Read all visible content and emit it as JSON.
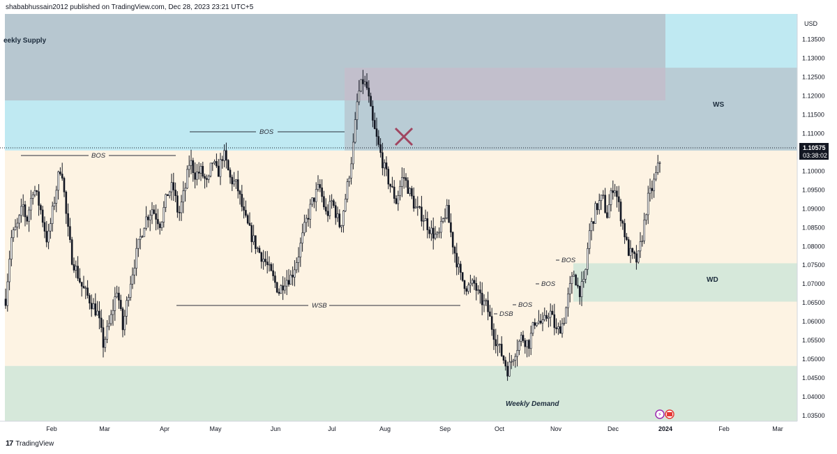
{
  "header": {
    "publisher_line": "shababhussain2012 published on TradingView.com, Dec 28, 2023 23:21 UTC+5"
  },
  "footer": {
    "brand": "TradingView"
  },
  "colors": {
    "supply_zone": "#bfe9f2",
    "supply_overlay": "#b7c7d0",
    "premium_box": "#c2bfcc",
    "demand_zone": "#d6e8da",
    "range_fill": "#fdf3e3",
    "candle": "#131722",
    "cross": "#a04560",
    "price_tag": "#131722"
  },
  "chart_data": {
    "type": "candlestick",
    "currency": "USD",
    "ylim": [
      1.0335,
      1.1418
    ],
    "y_ticks": [
      "1.13500",
      "1.13000",
      "1.12500",
      "1.12000",
      "1.11500",
      "1.11000",
      "1.10500",
      "1.10000",
      "1.09500",
      "1.09000",
      "1.08500",
      "1.08000",
      "1.07500",
      "1.07000",
      "1.06500",
      "1.06000",
      "1.05500",
      "1.05000",
      "1.04500",
      "1.04000",
      "1.03500"
    ],
    "x_ticks": [
      "Feb",
      "Mar",
      "Apr",
      "May",
      "Jun",
      "Jul",
      "Aug",
      "Sep",
      "Oct",
      "Nov",
      "Dec",
      "2024",
      "Feb",
      "Mar"
    ],
    "last_price": "1.10575",
    "countdown": "03:38:02",
    "zones": [
      {
        "label": "eekly Supply",
        "top": 1.1418,
        "bottom": 1.1055
      },
      {
        "label": "WS",
        "top": 1.1275,
        "bottom": 1.1055
      },
      {
        "label": "WD",
        "top": 1.0755,
        "bottom": 1.0653
      },
      {
        "label": "Weekly Demand",
        "top": 1.0482,
        "bottom": 1.0335
      }
    ],
    "annotations": [
      {
        "text": "BOS",
        "price": 1.1035
      },
      {
        "text": "BOS",
        "price": 1.109
      },
      {
        "text": "WSB",
        "price": 1.0637
      },
      {
        "text": "DSB",
        "price": 1.0585
      },
      {
        "text": "BOS",
        "price": 1.0637
      },
      {
        "text": "BOS",
        "price": 1.07
      },
      {
        "text": "BOS",
        "price": 1.075
      }
    ],
    "anchor_closes": [
      [
        0,
        1.066
      ],
      [
        8,
        1.082
      ],
      [
        18,
        1.086
      ],
      [
        25,
        1.091
      ],
      [
        30,
        1.0865
      ],
      [
        40,
        1.096
      ],
      [
        50,
        1.09
      ],
      [
        60,
        1.081
      ],
      [
        75,
        1.098
      ],
      [
        80,
        1.102
      ],
      [
        88,
        1.086
      ],
      [
        95,
        1.077
      ],
      [
        110,
        1.069
      ],
      [
        120,
        1.066
      ],
      [
        132,
        1.062
      ],
      [
        140,
        1.054
      ],
      [
        150,
        1.06
      ],
      [
        160,
        1.069
      ],
      [
        168,
        1.058
      ],
      [
        178,
        1.07
      ],
      [
        190,
        1.08
      ],
      [
        200,
        1.087
      ],
      [
        210,
        1.09
      ],
      [
        222,
        1.086
      ],
      [
        232,
        1.094
      ],
      [
        240,
        1.096
      ],
      [
        248,
        1.088
      ],
      [
        258,
        1.096
      ],
      [
        264,
        1.103
      ],
      [
        272,
        1.099
      ],
      [
        280,
        1.1
      ],
      [
        290,
        1.096
      ],
      [
        296,
        1.103
      ],
      [
        304,
        1.099
      ],
      [
        312,
        1.105
      ],
      [
        322,
        1.098
      ],
      [
        332,
        1.096
      ],
      [
        342,
        1.088
      ],
      [
        352,
        1.083
      ],
      [
        362,
        1.079
      ],
      [
        372,
        1.076
      ],
      [
        382,
        1.072
      ],
      [
        392,
        1.068
      ],
      [
        400,
        1.071
      ],
      [
        410,
        1.072
      ],
      [
        420,
        1.078
      ],
      [
        430,
        1.086
      ],
      [
        440,
        1.092
      ],
      [
        450,
        1.096
      ],
      [
        460,
        1.088
      ],
      [
        468,
        1.092
      ],
      [
        480,
        1.085
      ],
      [
        490,
        1.096
      ],
      [
        498,
        1.106
      ],
      [
        505,
        1.12
      ],
      [
        512,
        1.124
      ],
      [
        518,
        1.122
      ],
      [
        526,
        1.113
      ],
      [
        534,
        1.107
      ],
      [
        544,
        1.1
      ],
      [
        552,
        1.096
      ],
      [
        560,
        1.092
      ],
      [
        570,
        1.099
      ],
      [
        578,
        1.095
      ],
      [
        588,
        1.09
      ],
      [
        598,
        1.088
      ],
      [
        610,
        1.084
      ],
      [
        620,
        1.082
      ],
      [
        632,
        1.09
      ],
      [
        642,
        1.08
      ],
      [
        652,
        1.072
      ],
      [
        662,
        1.069
      ],
      [
        672,
        1.07
      ],
      [
        680,
        1.066
      ],
      [
        690,
        1.064
      ],
      [
        698,
        1.058
      ],
      [
        705,
        1.054
      ],
      [
        712,
        1.051
      ],
      [
        720,
        1.047
      ],
      [
        730,
        1.052
      ],
      [
        740,
        1.056
      ],
      [
        750,
        1.054
      ],
      [
        760,
        1.061
      ],
      [
        770,
        1.059
      ],
      [
        780,
        1.063
      ],
      [
        790,
        1.057
      ],
      [
        800,
        1.06
      ],
      [
        808,
        1.068
      ],
      [
        815,
        1.073
      ],
      [
        822,
        1.068
      ],
      [
        830,
        1.07
      ],
      [
        836,
        1.083
      ],
      [
        846,
        1.09
      ],
      [
        856,
        1.093
      ],
      [
        862,
        1.088
      ],
      [
        872,
        1.097
      ],
      [
        880,
        1.09
      ],
      [
        886,
        1.085
      ],
      [
        892,
        1.079
      ],
      [
        900,
        1.077
      ],
      [
        906,
        1.076
      ],
      [
        914,
        1.084
      ],
      [
        920,
        1.092
      ],
      [
        928,
        1.096
      ],
      [
        934,
        1.1
      ],
      [
        940,
        1.104
      ],
      [
        946,
        1.1058
      ]
    ]
  }
}
